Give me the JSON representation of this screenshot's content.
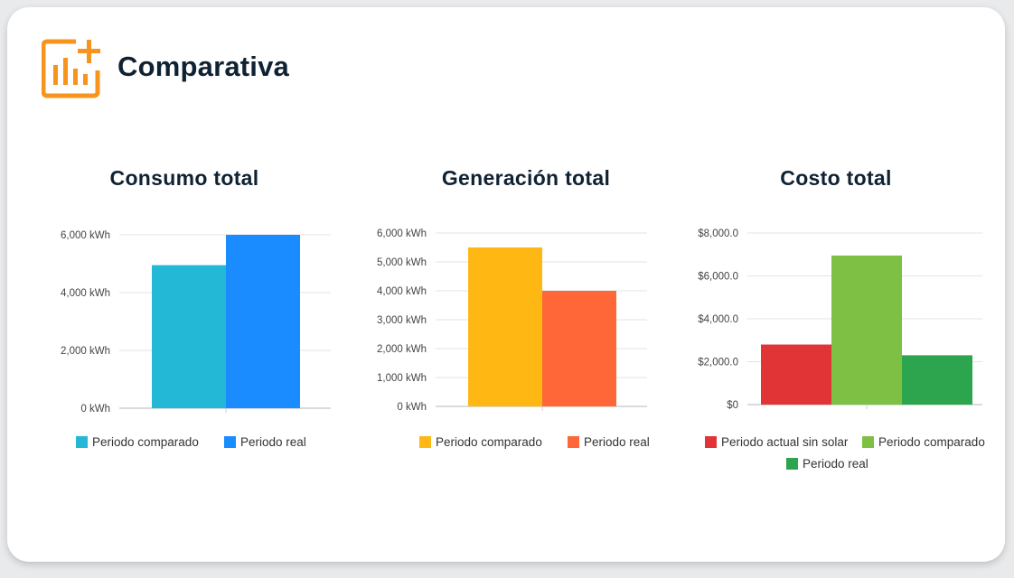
{
  "header": {
    "title": "Comparativa",
    "icon": "chart-plus-icon",
    "accent": "#f7941d"
  },
  "chart_data": [
    {
      "type": "bar",
      "title": "Consumo total",
      "categories": [
        "Periodo comparado",
        "Periodo real"
      ],
      "values": [
        4950,
        6000
      ],
      "colors": [
        "#22b8d6",
        "#1a8cff"
      ],
      "ylim": [
        0,
        6000
      ],
      "yticks": [
        0,
        2000,
        4000,
        6000
      ],
      "ytick_labels": [
        "0 kWh",
        "2,000 kWh",
        "4,000 kWh",
        "6,000 kWh"
      ],
      "legend": [
        "Periodo comparado",
        "Periodo real"
      ]
    },
    {
      "type": "bar",
      "title": "Generación total",
      "categories": [
        "Periodo comparado",
        "Periodo real"
      ],
      "values": [
        5500,
        4000
      ],
      "colors": [
        "#ffb713",
        "#ff6738"
      ],
      "ylim": [
        0,
        6000
      ],
      "yticks": [
        0,
        1000,
        2000,
        3000,
        4000,
        5000,
        6000
      ],
      "ytick_labels": [
        "0 kWh",
        "1,000 kWh",
        "2,000 kWh",
        "3,000 kWh",
        "4,000 kWh",
        "5,000 kWh",
        "6,000 kWh"
      ],
      "legend": [
        "Periodo comparado",
        "Periodo real"
      ]
    },
    {
      "type": "bar",
      "title": "Costo total",
      "categories": [
        "Periodo actual sin solar",
        "Periodo comparado",
        "Periodo real"
      ],
      "values": [
        2800,
        6950,
        2300
      ],
      "colors": [
        "#e03437",
        "#7dc043",
        "#2da44e"
      ],
      "ylim": [
        0,
        8000
      ],
      "yticks": [
        0,
        2000,
        4000,
        6000,
        8000
      ],
      "ytick_labels": [
        "$0",
        "$2,000.0",
        "$4,000.0",
        "$6,000.0",
        "$8,000.0"
      ],
      "legend": [
        "Periodo actual sin solar",
        "Periodo comparado",
        "Periodo real"
      ]
    }
  ]
}
